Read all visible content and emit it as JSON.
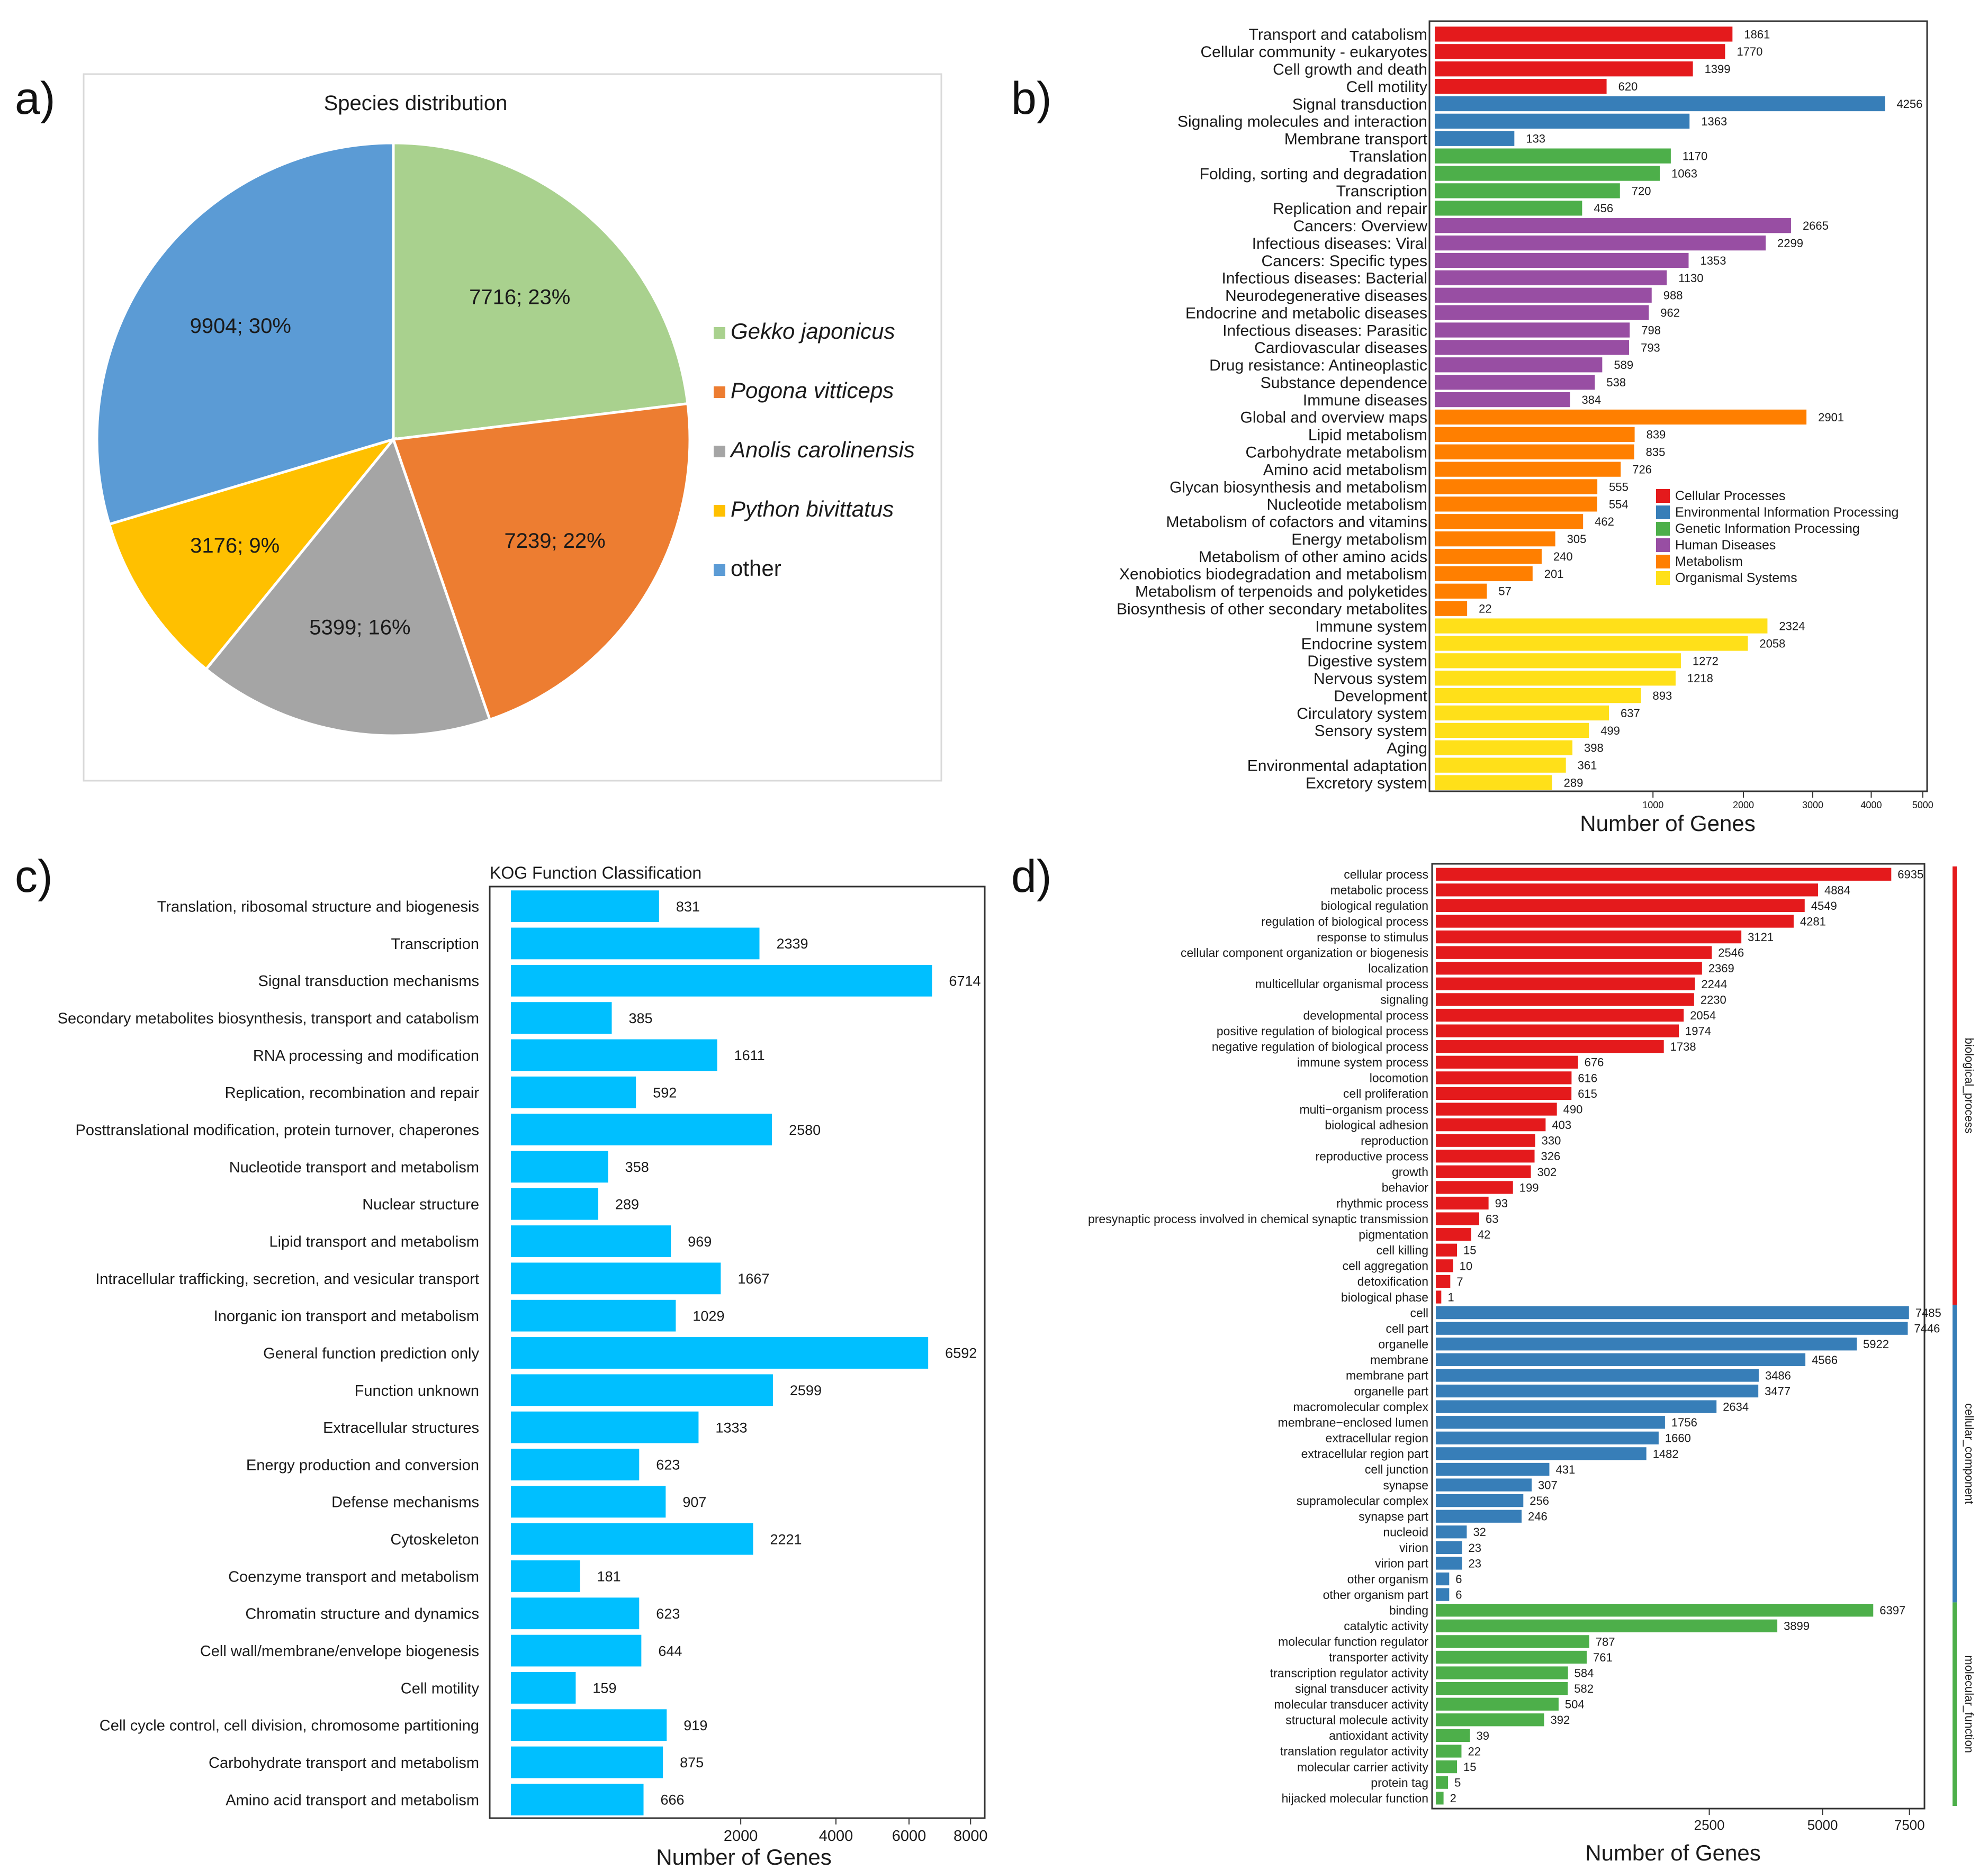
{
  "panels": [
    "a)",
    "b)",
    "c)",
    "d)"
  ],
  "chart_data": [
    {
      "id": "a",
      "type": "pie",
      "title": "Species distribution",
      "slices": [
        {
          "name": "Gekko japonicus",
          "value": 7716,
          "label": "7716; 23%",
          "color": "#a9d18e"
        },
        {
          "name": "Pogona vitticeps",
          "value": 7239,
          "label": "7239; 22%",
          "color": "#ed7d31"
        },
        {
          "name": "Anolis carolinensis",
          "value": 5399,
          "label": "5399; 16%",
          "color": "#a5a5a5"
        },
        {
          "name": "Python bivittatus",
          "value": 3176,
          "label": "3176; 9%",
          "color": "#ffc000"
        },
        {
          "name": "other",
          "value": 9904,
          "label": "9904; 30%",
          "color": "#5b9bd5"
        }
      ],
      "legend": [
        "Gekko japonicus",
        "Pogona vitticeps",
        "Anolis carolinensis",
        "Python bivittatus",
        "other"
      ],
      "legend_italic": [
        true,
        true,
        true,
        true,
        false
      ]
    },
    {
      "id": "b",
      "type": "bar",
      "orientation": "horizontal",
      "scale": "sqrt",
      "xlabel": "Number of Genes",
      "ticks": [
        "1000",
        "2000",
        "3000",
        "4000",
        "5000"
      ],
      "tick_values": [
        1000,
        2000,
        3000,
        4000,
        5000
      ],
      "xlim": [
        0,
        5200
      ],
      "legend": [
        {
          "name": "Cellular Processes",
          "color": "#e41a1c"
        },
        {
          "name": "Environmental Information Processing",
          "color": "#377eb8"
        },
        {
          "name": "Genetic Information Processing",
          "color": "#4daf4a"
        },
        {
          "name": "Human Diseases",
          "color": "#984ea3"
        },
        {
          "name": "Metabolism",
          "color": "#ff7f00"
        },
        {
          "name": "Organismal Systems",
          "color": "#ffe019"
        }
      ],
      "categories": [
        "Transport and catabolism",
        "Cellular community - eukaryotes",
        "Cell growth and death",
        "Cell motility",
        "Signal transduction",
        "Signaling molecules and interaction",
        "Membrane transport",
        "Translation",
        "Folding, sorting and degradation",
        "Transcription",
        "Replication and repair",
        "Cancers: Overview",
        "Infectious diseases: Viral",
        "Cancers: Specific types",
        "Infectious diseases: Bacterial",
        "Neurodegenerative diseases",
        "Endocrine and metabolic diseases",
        "Infectious diseases: Parasitic",
        "Cardiovascular diseases",
        "Drug resistance: Antineoplastic",
        "Substance dependence",
        "Immune diseases",
        "Global and overview maps",
        "Lipid metabolism",
        "Carbohydrate metabolism",
        "Amino acid metabolism",
        "Glycan biosynthesis and metabolism",
        "Nucleotide metabolism",
        "Metabolism of cofactors and vitamins",
        "Energy metabolism",
        "Metabolism of other amino acids",
        "Xenobiotics biodegradation and metabolism",
        "Metabolism of terpenoids and polyketides",
        "Biosynthesis of other secondary metabolites",
        "Immune system",
        "Endocrine system",
        "Digestive system",
        "Nervous system",
        "Development",
        "Circulatory system",
        "Sensory system",
        "Aging",
        "Environmental adaptation",
        "Excretory system"
      ],
      "values": [
        1861,
        1770,
        1399,
        620,
        4256,
        1363,
        133,
        1170,
        1063,
        720,
        456,
        2665,
        2299,
        1353,
        1130,
        988,
        962,
        798,
        793,
        589,
        538,
        384,
        2901,
        839,
        835,
        726,
        555,
        554,
        462,
        305,
        240,
        201,
        57,
        22,
        2324,
        2058,
        1272,
        1218,
        893,
        637,
        499,
        398,
        361,
        289
      ],
      "groups": [
        0,
        0,
        0,
        0,
        1,
        1,
        1,
        2,
        2,
        2,
        2,
        3,
        3,
        3,
        3,
        3,
        3,
        3,
        3,
        3,
        3,
        3,
        4,
        4,
        4,
        4,
        4,
        4,
        4,
        4,
        4,
        4,
        4,
        4,
        5,
        5,
        5,
        5,
        5,
        5,
        5,
        5,
        5,
        5
      ]
    },
    {
      "id": "c",
      "type": "bar",
      "orientation": "horizontal",
      "scale": "sqrt",
      "title": "KOG Function Classification",
      "xlabel": "Number of Genes",
      "ticks": [
        "2000",
        "4000",
        "6000",
        "8000"
      ],
      "tick_values": [
        2000,
        4000,
        6000,
        8000
      ],
      "xlim": [
        0,
        8500
      ],
      "color": "#00bfff",
      "categories": [
        "Translation, ribosomal structure and biogenesis",
        "Transcription",
        "Signal transduction mechanisms",
        "Secondary metabolites biosynthesis, transport and catabolism",
        "RNA processing and modification",
        "Replication, recombination and repair",
        "Posttranslational modification, protein turnover, chaperones",
        "Nucleotide transport and metabolism",
        "Nuclear structure",
        "Lipid transport and metabolism",
        "Intracellular trafficking, secretion, and vesicular transport",
        "Inorganic ion transport and metabolism",
        "General function prediction only",
        "Function unknown",
        "Extracellular structures",
        "Energy production and conversion",
        "Defense mechanisms",
        "Cytoskeleton",
        "Coenzyme transport and metabolism",
        "Chromatin structure and dynamics",
        "Cell wall/membrane/envelope biogenesis",
        "Cell motility",
        "Cell cycle control, cell division, chromosome partitioning",
        "Carbohydrate transport and metabolism",
        "Amino acid transport and metabolism"
      ],
      "values": [
        831,
        2339,
        6714,
        385,
        1611,
        592,
        2580,
        358,
        289,
        969,
        1667,
        1029,
        6592,
        2599,
        1333,
        623,
        907,
        2221,
        181,
        623,
        644,
        159,
        919,
        875,
        666
      ]
    },
    {
      "id": "d",
      "type": "bar",
      "orientation": "horizontal",
      "scale": "sqrt",
      "xlabel": "Number of Genes",
      "ticks": [
        "2500",
        "5000",
        "7500"
      ],
      "tick_values": [
        2500,
        5000,
        7500
      ],
      "xlim": [
        0,
        8000
      ],
      "group_names": [
        "biological_process",
        "cellular_component",
        "molecular_function"
      ],
      "group_colors": [
        "#e41a1c",
        "#377eb8",
        "#4daf4a"
      ],
      "categories": [
        "cellular process",
        "metabolic process",
        "biological regulation",
        "regulation of biological process",
        "response to stimulus",
        "cellular component organization or biogenesis",
        "localization",
        "multicellular organismal process",
        "signaling",
        "developmental process",
        "positive regulation of biological process",
        "negative regulation of biological process",
        "immune system process",
        "locomotion",
        "cell proliferation",
        "multi−organism process",
        "biological adhesion",
        "reproduction",
        "reproductive process",
        "growth",
        "behavior",
        "rhythmic process",
        "presynaptic process involved in chemical synaptic transmission",
        "pigmentation",
        "cell killing",
        "cell aggregation",
        "detoxification",
        "biological phase",
        "cell",
        "cell part",
        "organelle",
        "membrane",
        "membrane part",
        "organelle part",
        "macromolecular complex",
        "membrane−enclosed lumen",
        "extracellular region",
        "extracellular region part",
        "cell junction",
        "synapse",
        "supramolecular complex",
        "synapse part",
        "nucleoid",
        "virion",
        "virion part",
        "other organism",
        "other organism part",
        "binding",
        "catalytic activity",
        "molecular function regulator",
        "transporter activity",
        "transcription regulator activity",
        "signal transducer activity",
        "molecular transducer activity",
        "structural molecule activity",
        "antioxidant activity",
        "translation regulator activity",
        "molecular carrier activity",
        "protein tag",
        "hijacked molecular function"
      ],
      "values": [
        6935,
        4884,
        4549,
        4281,
        3121,
        2546,
        2369,
        2244,
        2230,
        2054,
        1974,
        1738,
        676,
        616,
        615,
        490,
        403,
        330,
        326,
        302,
        199,
        93,
        63,
        42,
        15,
        10,
        7,
        1,
        7485,
        7446,
        5922,
        4566,
        3486,
        3477,
        2634,
        1756,
        1660,
        1482,
        431,
        307,
        256,
        246,
        32,
        23,
        23,
        6,
        6,
        6397,
        3899,
        787,
        761,
        584,
        582,
        504,
        392,
        39,
        22,
        15,
        5,
        2
      ],
      "groups": [
        0,
        0,
        0,
        0,
        0,
        0,
        0,
        0,
        0,
        0,
        0,
        0,
        0,
        0,
        0,
        0,
        0,
        0,
        0,
        0,
        0,
        0,
        0,
        0,
        0,
        0,
        0,
        0,
        1,
        1,
        1,
        1,
        1,
        1,
        1,
        1,
        1,
        1,
        1,
        1,
        1,
        1,
        1,
        1,
        1,
        1,
        1,
        2,
        2,
        2,
        2,
        2,
        2,
        2,
        2,
        2,
        2,
        2,
        2,
        2
      ]
    }
  ]
}
